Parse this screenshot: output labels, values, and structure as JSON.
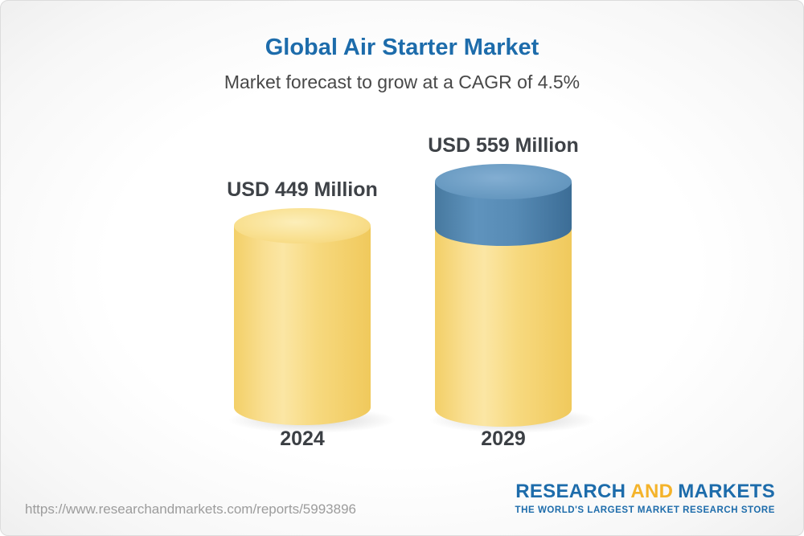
{
  "header": {
    "title": "Global Air Starter Market",
    "subtitle": "Market forecast to grow at a CAGR of 4.5%"
  },
  "chart_data": {
    "type": "bar",
    "title": "Global Air Starter Market",
    "subtitle": "Market forecast to grow at a CAGR of 4.5%",
    "cagr_percent": 4.5,
    "categories": [
      "2024",
      "2029"
    ],
    "values": [
      449,
      559
    ],
    "unit": "USD Million",
    "value_labels": [
      "USD 449 Million",
      "USD 559 Million"
    ],
    "series_note": "2029 cylinder shows base value (449, yellow) plus growth segment (110, blue) stacked on top",
    "colors": {
      "base_segment": "#f6d26e",
      "growth_segment": "#4d7fa9",
      "title_text": "#1d6cab",
      "label_text": "#3e4247"
    },
    "legend": "none",
    "grid": false
  },
  "footer": {
    "url": "https://www.researchandmarkets.com/reports/5993896",
    "logo": {
      "part1": "RESEARCH",
      "part2": "AND",
      "part3": "MARKETS",
      "tagline": "THE WORLD'S LARGEST MARKET RESEARCH STORE"
    }
  }
}
